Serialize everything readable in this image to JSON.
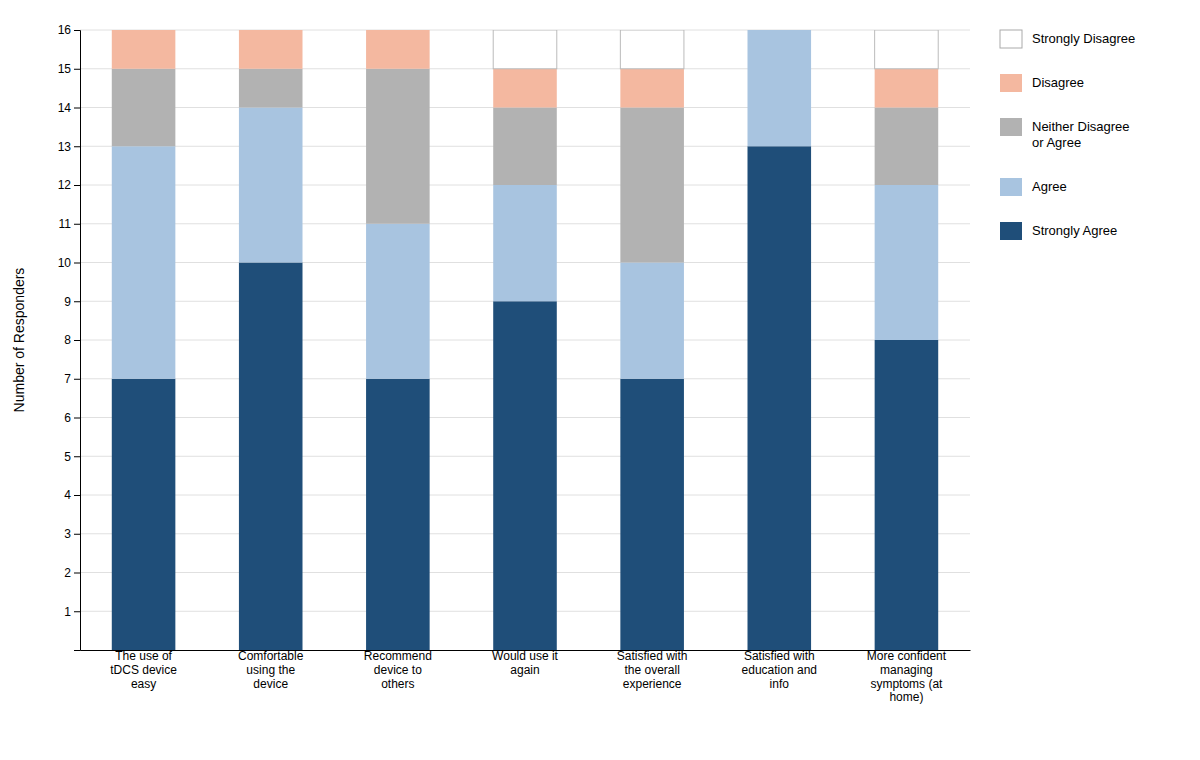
{
  "chart_data": {
    "type": "bar",
    "stacked": true,
    "grid": true,
    "legend": "right",
    "ylabel": "Number of Responders",
    "categories": [
      "The use of\ntDCS device\neasy",
      "Comfortable\nusing the\ndevice",
      "Recommend\ndevice to\nothers",
      "Would use it\nagain",
      "Satisfied with\nthe overall\nexperience",
      "Satisfied with\neducation and\ninfo",
      "More confident\nmanaging\nsymptoms (at\nhome)"
    ],
    "series": [
      {
        "name": "Strongly Agree",
        "color": "#1f4e79",
        "values": [
          7,
          10,
          7,
          9,
          7,
          13,
          8
        ]
      },
      {
        "name": "Agree",
        "color": "#a8c4e0",
        "values": [
          6,
          4,
          4,
          3,
          3,
          3,
          4
        ]
      },
      {
        "name": "Neither Disagree\nor Agree",
        "color": "#b2b2b2",
        "values": [
          2,
          1,
          4,
          2,
          4,
          0,
          2
        ]
      },
      {
        "name": "Disagree",
        "color": "#f4b8a0",
        "values": [
          1,
          1,
          1,
          1,
          1,
          0,
          1
        ]
      },
      {
        "name": "Strongly Disagree",
        "color": "#ffffff",
        "values": [
          0,
          0,
          0,
          1,
          1,
          0,
          1
        ]
      }
    ],
    "ylim": [
      0,
      16
    ],
    "yticks": [
      1,
      2,
      3,
      4,
      5,
      6,
      7,
      8,
      9,
      10,
      11,
      12,
      13,
      14,
      15,
      16
    ]
  }
}
